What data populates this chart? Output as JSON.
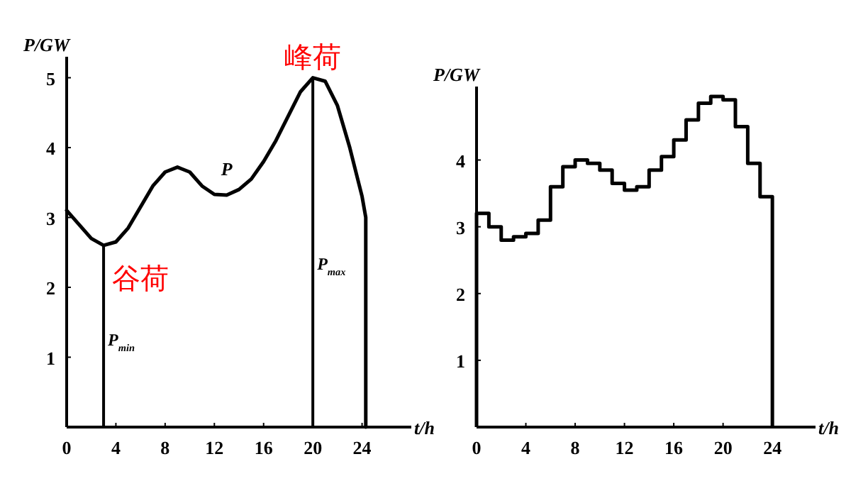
{
  "chart_data": [
    {
      "type": "line",
      "xlabel": "t/h",
      "ylabel": "P/GW",
      "xlim": [
        0,
        28
      ],
      "xticks": [
        0,
        4,
        8,
        12,
        16,
        20,
        24
      ],
      "ylim": [
        0,
        5.3
      ],
      "yticks": [
        1,
        2,
        3,
        4,
        5
      ],
      "x": [
        0,
        1,
        2,
        3,
        4,
        5,
        6,
        7,
        8,
        9,
        10,
        11,
        12,
        13,
        14,
        15,
        16,
        17,
        18,
        19,
        20,
        21,
        22,
        23,
        24,
        24.3,
        24.3
      ],
      "series": [
        {
          "name": "P",
          "color": "#000000",
          "values": [
            3.1,
            2.9,
            2.7,
            2.6,
            2.65,
            2.85,
            3.15,
            3.45,
            3.65,
            3.72,
            3.65,
            3.45,
            3.33,
            3.32,
            3.4,
            3.55,
            3.8,
            4.1,
            4.45,
            4.8,
            5.0,
            4.95,
            4.6,
            4.0,
            3.3,
            3.0,
            0
          ]
        }
      ],
      "ref_lines": [
        {
          "axis": "x",
          "value": 3,
          "label": "P$_{min}$"
        },
        {
          "axis": "x",
          "value": 20,
          "label": "P$_{max}$"
        }
      ],
      "annotations": [
        {
          "text": "峰荷",
          "x": 20,
          "y": 5.0
        },
        {
          "text": "谷荷",
          "x": 3,
          "y": 2.6
        }
      ]
    },
    {
      "type": "histogram",
      "xlabel": "t/h",
      "ylabel": "P/GW",
      "xlim": [
        0,
        27.5
      ],
      "xticks": [
        0,
        4,
        8,
        12,
        16,
        20,
        24
      ],
      "ylim": [
        0,
        5.1
      ],
      "yticks": [
        1,
        2,
        3,
        4
      ],
      "bins": [
        0,
        1,
        2,
        3,
        4,
        5,
        6,
        7,
        8,
        9,
        10,
        11,
        12,
        13,
        14,
        15,
        16,
        17,
        18,
        19,
        20,
        21,
        22,
        23,
        24
      ],
      "values": [
        3.2,
        3.0,
        2.8,
        2.85,
        2.9,
        3.1,
        3.6,
        3.9,
        4.0,
        3.95,
        3.85,
        3.65,
        3.55,
        3.6,
        3.85,
        4.05,
        4.3,
        4.6,
        4.85,
        4.95,
        4.9,
        4.5,
        3.95,
        3.45
      ]
    }
  ]
}
